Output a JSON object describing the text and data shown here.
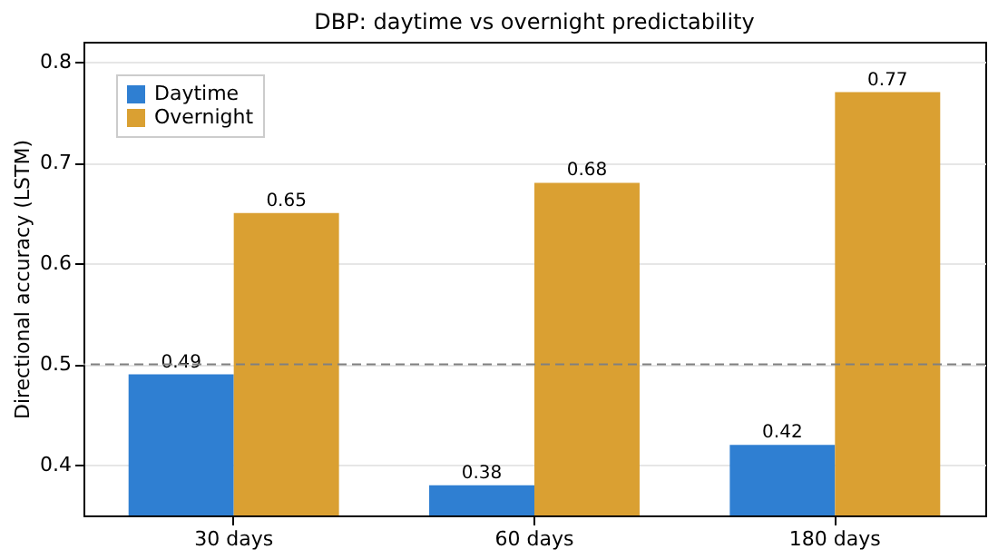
{
  "chart_data": {
    "type": "bar",
    "title": "DBP: daytime vs overnight predictability",
    "ylabel": "Directional accuracy (LSTM)",
    "categories": [
      "30 days",
      "60 days",
      "180 days"
    ],
    "series": [
      {
        "name": "Daytime",
        "color": "#2f7fd2",
        "values": [
          0.49,
          0.38,
          0.42
        ]
      },
      {
        "name": "Overnight",
        "color": "#daa032",
        "values": [
          0.65,
          0.68,
          0.77
        ]
      }
    ],
    "ylim": [
      0.35,
      0.82
    ],
    "yticks": [
      0.4,
      0.5,
      0.6,
      0.7,
      0.8
    ],
    "grid": "y",
    "legend": "top left",
    "data_labels": true,
    "ref_lines": [
      {
        "axis": "y",
        "value": 0.5,
        "color": "#808080",
        "line_style": "dashed"
      }
    ]
  }
}
